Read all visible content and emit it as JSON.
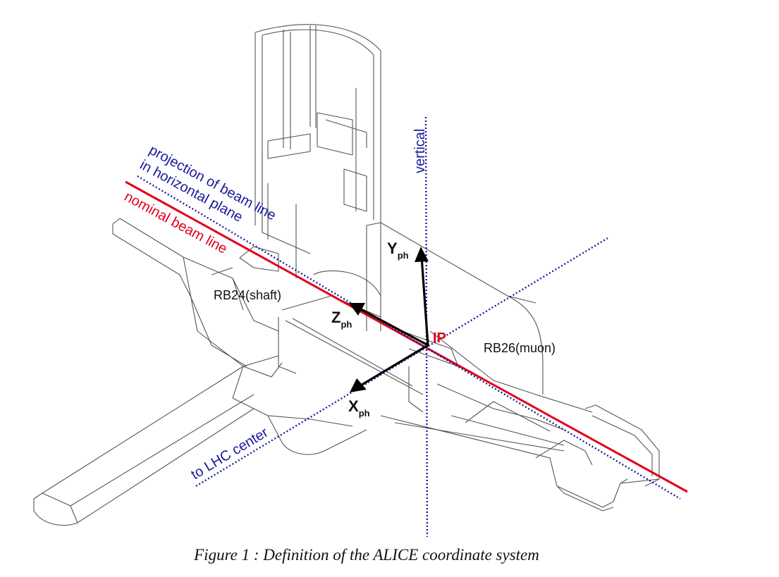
{
  "labels": {
    "projection_line1": "projection of beam line",
    "projection_line2": "in horizontal plane",
    "nominal_beam": "nominal beam line",
    "vertical": "vertical",
    "shaft": "RB24(shaft)",
    "muon": "RB26(muon)",
    "lhc_center": "to LHC center",
    "ip": "IP"
  },
  "axes": {
    "x": {
      "letter": "X",
      "sub": "ph"
    },
    "y": {
      "letter": "Y",
      "sub": "ph"
    },
    "z": {
      "letter": "Z",
      "sub": "ph"
    }
  },
  "colors": {
    "beam_line": "#e0001a",
    "dotted_lines": "#1a1a9c",
    "axes": "#000000",
    "cavern_outline": "#555555"
  },
  "caption": "Figure 1 : Definition of the ALICE coordinate system"
}
